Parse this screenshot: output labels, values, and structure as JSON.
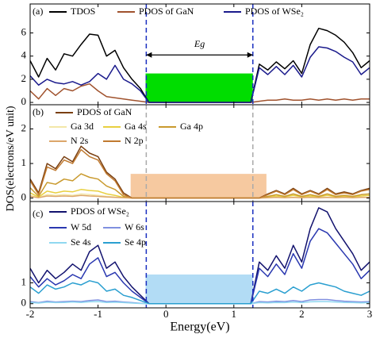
{
  "chart_data": [
    {
      "type": "line",
      "label": "(a)",
      "x": [
        -2,
        -1.875,
        -1.75,
        -1.625,
        -1.5,
        -1.375,
        -1.25,
        -1.125,
        -1,
        -0.875,
        -0.75,
        -0.625,
        -0.5,
        -0.375,
        -0.25,
        -0.125,
        0,
        0.125,
        0.25,
        0.375,
        0.5,
        0.625,
        0.75,
        0.875,
        1,
        1.125,
        1.25,
        1.375,
        1.5,
        1.625,
        1.75,
        1.875,
        2,
        2.125,
        2.25,
        2.375,
        2.5,
        2.625,
        2.75,
        2.875,
        3
      ],
      "series": [
        {
          "name": "TDOS",
          "color": "#000000",
          "values": [
            3.6,
            2.2,
            3.8,
            2.8,
            4.2,
            4.0,
            5.0,
            5.9,
            5.8,
            4.0,
            4.5,
            3.0,
            2.0,
            1.2,
            0,
            0,
            0,
            0,
            0,
            0,
            0,
            0,
            0,
            0,
            0,
            0,
            0,
            3.3,
            2.8,
            3.5,
            2.9,
            3.6,
            2.5,
            5.0,
            6.4,
            6.2,
            5.8,
            5.2,
            4.3,
            3.0,
            3.6
          ]
        },
        {
          "name": "PDOS of GaN",
          "color": "#a0522d",
          "values": [
            1.0,
            0.3,
            1.2,
            0.6,
            1.2,
            1.0,
            1.4,
            1.6,
            1.0,
            0.5,
            0.4,
            0.3,
            0.2,
            0.1,
            0,
            0,
            0,
            0,
            0,
            0,
            0,
            0,
            0,
            0,
            0,
            0,
            0,
            0.1,
            0.2,
            0.2,
            0.3,
            0.2,
            0.2,
            0.3,
            0.2,
            0.3,
            0.2,
            0.3,
            0.2,
            0.3,
            0.3
          ]
        },
        {
          "name": "PDOS of WSe₂",
          "color": "#1a1a8c",
          "values": [
            2.3,
            1.5,
            2.0,
            1.7,
            1.6,
            1.8,
            1.5,
            1.8,
            2.5,
            2.0,
            3.2,
            2.0,
            1.6,
            1.0,
            0,
            0,
            0,
            0,
            0,
            0,
            0,
            0,
            0,
            0,
            0,
            0,
            0,
            3.0,
            2.4,
            3.1,
            2.4,
            3.2,
            2.2,
            3.9,
            4.8,
            4.7,
            4.4,
            3.9,
            3.5,
            2.4,
            3.0
          ]
        }
      ],
      "shade": {
        "x": [
          -0.3,
          1.28
        ],
        "y": [
          0,
          2.5
        ],
        "color": "#00dd00"
      },
      "vlines": [
        -0.29,
        1.28
      ],
      "vline_color": "#1a2fc0",
      "annotation": {
        "text": "Eg",
        "x": [
          -0.29,
          1.28
        ],
        "y": 4.1
      },
      "ylim": [
        -0.2,
        8.5
      ],
      "yticks": [
        0,
        2,
        4,
        6
      ]
    },
    {
      "type": "line",
      "label": "(b)",
      "ylabel": "DOS(electrons/eV unit)",
      "x": [
        -2,
        -1.875,
        -1.75,
        -1.625,
        -1.5,
        -1.375,
        -1.25,
        -1.125,
        -1,
        -0.875,
        -0.75,
        -0.625,
        -0.5,
        -0.375,
        -0.25,
        -0.125,
        0,
        0.125,
        0.25,
        0.375,
        0.5,
        0.625,
        0.75,
        0.875,
        1,
        1.125,
        1.25,
        1.375,
        1.5,
        1.625,
        1.75,
        1.875,
        2,
        2.125,
        2.25,
        2.375,
        2.5,
        2.625,
        2.75,
        2.875,
        3
      ],
      "series": [
        {
          "name": "PDOS of GaN",
          "color": "#7a3f10",
          "values": [
            0.55,
            0.15,
            1.0,
            0.85,
            1.2,
            1.05,
            1.5,
            1.3,
            1.2,
            0.75,
            0.55,
            0.15,
            0,
            0,
            0,
            0,
            0,
            0,
            0,
            0,
            0,
            0,
            0,
            0,
            0,
            0,
            0,
            0,
            0.12,
            0.22,
            0.12,
            0.28,
            0.12,
            0.22,
            0.12,
            0.28,
            0.12,
            0.18,
            0.12,
            0.22,
            0.28
          ]
        },
        {
          "name": "Ga 3d",
          "color": "#f3e7a8",
          "values": [
            0.08,
            0.02,
            0.1,
            0.08,
            0.1,
            0.08,
            0.12,
            0.1,
            0.08,
            0.05,
            0.03,
            0.01,
            0,
            0,
            0,
            0,
            0,
            0,
            0,
            0,
            0,
            0,
            0,
            0,
            0,
            0,
            0,
            0,
            0.01,
            0.02,
            0.01,
            0.02,
            0.01,
            0.02,
            0.01,
            0.02,
            0.01,
            0.02,
            0.01,
            0.02,
            0.02
          ]
        },
        {
          "name": "Ga 4s",
          "color": "#e8d040",
          "values": [
            0.15,
            0.03,
            0.2,
            0.15,
            0.2,
            0.18,
            0.25,
            0.22,
            0.2,
            0.12,
            0.08,
            0.02,
            0,
            0,
            0,
            0,
            0,
            0,
            0,
            0,
            0,
            0,
            0,
            0,
            0,
            0,
            0,
            0,
            0.04,
            0.06,
            0.04,
            0.08,
            0.04,
            0.06,
            0.04,
            0.08,
            0.04,
            0.05,
            0.04,
            0.06,
            0.08
          ]
        },
        {
          "name": "Ga 4p",
          "color": "#c99a2e",
          "values": [
            0.3,
            0.05,
            0.45,
            0.4,
            0.55,
            0.5,
            0.7,
            0.6,
            0.55,
            0.35,
            0.25,
            0.05,
            0,
            0,
            0,
            0,
            0,
            0,
            0,
            0,
            0,
            0,
            0,
            0,
            0,
            0,
            0,
            0,
            0.05,
            0.1,
            0.05,
            0.12,
            0.05,
            0.1,
            0.05,
            0.12,
            0.05,
            0.08,
            0.05,
            0.1,
            0.12
          ]
        },
        {
          "name": "N 2s",
          "color": "#dca66a",
          "values": [
            0.05,
            0.01,
            0.06,
            0.05,
            0.06,
            0.05,
            0.08,
            0.06,
            0.05,
            0.03,
            0.02,
            0.01,
            0,
            0,
            0,
            0,
            0,
            0,
            0,
            0,
            0,
            0,
            0,
            0,
            0,
            0,
            0,
            0,
            0.01,
            0.02,
            0.01,
            0.02,
            0.01,
            0.02,
            0.01,
            0.02,
            0.01,
            0.02,
            0.01,
            0.02,
            0.02
          ]
        },
        {
          "name": "N 2p",
          "color": "#c07a30",
          "values": [
            0.5,
            0.1,
            0.9,
            0.8,
            1.1,
            1.0,
            1.4,
            1.2,
            1.1,
            0.7,
            0.5,
            0.1,
            0,
            0,
            0,
            0,
            0,
            0,
            0,
            0,
            0,
            0,
            0,
            0,
            0,
            0,
            0,
            0,
            0.1,
            0.2,
            0.1,
            0.25,
            0.1,
            0.2,
            0.1,
            0.25,
            0.1,
            0.15,
            0.1,
            0.2,
            0.25
          ]
        }
      ],
      "shade": {
        "x": [
          -0.52,
          1.48
        ],
        "y": [
          0,
          0.7
        ],
        "color": "#f6c9a0"
      },
      "vlines": [
        -0.29,
        1.28
      ],
      "vline_color": "#aaaaaa",
      "ylim": [
        -0.1,
        2.7
      ],
      "yticks": [
        0,
        1,
        2
      ]
    },
    {
      "type": "line",
      "label": "(c)",
      "xlabel": "Energy(eV)",
      "x": [
        -2,
        -1.875,
        -1.75,
        -1.625,
        -1.5,
        -1.375,
        -1.25,
        -1.125,
        -1,
        -0.875,
        -0.75,
        -0.625,
        -0.5,
        -0.375,
        -0.25,
        -0.125,
        0,
        0.125,
        0.25,
        0.375,
        0.5,
        0.625,
        0.75,
        0.875,
        1,
        1.125,
        1.25,
        1.375,
        1.5,
        1.625,
        1.75,
        1.875,
        2,
        2.125,
        2.25,
        2.375,
        2.5,
        2.625,
        2.75,
        2.875,
        3
      ],
      "series": [
        {
          "name": "PDOS of WSe₂",
          "color": "#12126e",
          "values": [
            1.7,
            1.0,
            1.6,
            1.2,
            1.5,
            1.9,
            1.6,
            2.5,
            2.8,
            1.7,
            2.0,
            1.3,
            0.8,
            0.4,
            0,
            0,
            0,
            0,
            0,
            0,
            0,
            0,
            0,
            0,
            0,
            0,
            0,
            2.0,
            1.6,
            2.3,
            1.7,
            2.8,
            2.0,
            3.6,
            4.6,
            4.4,
            3.6,
            3.0,
            2.4,
            1.6,
            2.0
          ]
        },
        {
          "name": "W 5d",
          "color": "#2a38b0",
          "values": [
            1.3,
            0.8,
            1.2,
            0.9,
            1.1,
            1.4,
            1.2,
            1.9,
            2.2,
            1.3,
            1.5,
            1.0,
            0.6,
            0.3,
            0,
            0,
            0,
            0,
            0,
            0,
            0,
            0,
            0,
            0,
            0,
            0,
            0,
            1.7,
            1.3,
            1.9,
            1.4,
            2.4,
            1.7,
            3.0,
            3.6,
            3.4,
            2.9,
            2.4,
            1.9,
            1.2,
            1.6
          ]
        },
        {
          "name": "W 6s",
          "color": "#8090e0",
          "values": [
            0.1,
            0.05,
            0.12,
            0.08,
            0.1,
            0.12,
            0.1,
            0.15,
            0.18,
            0.1,
            0.12,
            0.08,
            0.05,
            0.02,
            0,
            0,
            0,
            0,
            0,
            0,
            0,
            0,
            0,
            0,
            0,
            0,
            0,
            0.1,
            0.08,
            0.12,
            0.1,
            0.15,
            0.1,
            0.18,
            0.2,
            0.2,
            0.15,
            0.12,
            0.1,
            0.08,
            0.1
          ]
        },
        {
          "name": "Se 4s",
          "color": "#90d8f0",
          "values": [
            0.06,
            0.03,
            0.07,
            0.05,
            0.06,
            0.08,
            0.06,
            0.09,
            0.1,
            0.06,
            0.07,
            0.05,
            0.03,
            0.01,
            0,
            0,
            0,
            0,
            0,
            0,
            0,
            0,
            0,
            0,
            0,
            0,
            0,
            0.05,
            0.04,
            0.06,
            0.05,
            0.08,
            0.05,
            0.09,
            0.1,
            0.1,
            0.08,
            0.06,
            0.05,
            0.04,
            0.05
          ]
        },
        {
          "name": "Se 4p",
          "color": "#2a9fd0",
          "values": [
            0.8,
            0.5,
            0.9,
            0.7,
            0.8,
            1.0,
            0.9,
            1.1,
            1.0,
            0.6,
            0.7,
            0.4,
            0.3,
            0.15,
            0,
            0,
            0,
            0,
            0,
            0,
            0,
            0,
            0,
            0,
            0,
            0,
            0,
            0.6,
            0.5,
            0.7,
            0.5,
            0.8,
            0.6,
            0.9,
            1.0,
            0.9,
            0.8,
            0.6,
            0.5,
            0.4,
            0.6
          ]
        }
      ],
      "shade": {
        "x": [
          -0.3,
          1.28
        ],
        "y": [
          0,
          1.4
        ],
        "color": "#b2dcf5"
      },
      "vlines": [
        -0.29,
        1.28
      ],
      "vline_color": "#1a2fc0",
      "xlim": [
        -2,
        3
      ],
      "xticks": [
        -2,
        -1,
        0,
        1,
        2,
        3
      ],
      "ylim": [
        -0.2,
        4.9
      ],
      "yticks": [
        0,
        1
      ]
    }
  ]
}
